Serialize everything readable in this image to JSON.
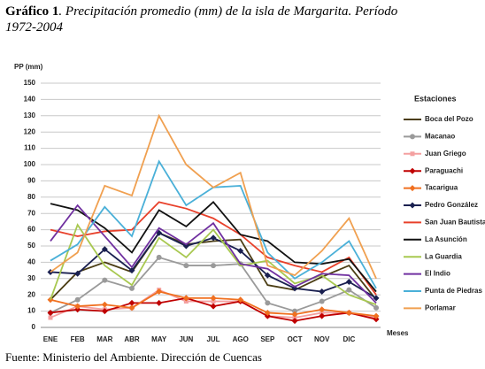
{
  "chart_data": {
    "type": "line",
    "title_label": "Gráfico 1",
    "title": ". Precipitación promedio (mm) de la isla de Margarita. Período 1972-2004",
    "y_label": "PP (mm)",
    "x_label": "Meses",
    "legend_title": "Estaciones",
    "source": "Fuente: Ministerio del Ambiente. Dirección de Cuencas",
    "categories": [
      "ENE",
      "FEB",
      "MAR",
      "ABR",
      "MAY",
      "JUN",
      "JUL",
      "AGO",
      "SEP",
      "OCT",
      "NOV",
      "DIC",
      null
    ],
    "ylim": [
      0,
      150
    ],
    "yticks": [
      0,
      10,
      20,
      30,
      40,
      50,
      60,
      70,
      80,
      90,
      100,
      110,
      120,
      130,
      140,
      150
    ],
    "grid": true,
    "legend": "right",
    "series": [
      {
        "name": "Boca del Pozo",
        "color": "#4b3d14",
        "marker": "none",
        "values": [
          17,
          34,
          40,
          34,
          58,
          51,
          53,
          54,
          26,
          23,
          31,
          38,
          17
        ]
      },
      {
        "name": "Macanao",
        "color": "#9a9a9a",
        "marker": "circle",
        "values": [
          9,
          17,
          29,
          24,
          43,
          38,
          38,
          39,
          15,
          10,
          16,
          23,
          12
        ]
      },
      {
        "name": "Juan Griego",
        "color": "#f4a0a0",
        "marker": "square",
        "values": [
          6,
          13,
          11,
          12,
          23,
          16,
          16,
          16,
          7,
          6,
          9,
          9,
          6
        ]
      },
      {
        "name": "Paraguachi",
        "color": "#c00000",
        "marker": "diamond",
        "values": [
          9,
          11,
          10,
          15,
          15,
          18,
          13,
          16,
          7,
          4,
          7,
          9,
          5
        ]
      },
      {
        "name": "Tacarigua",
        "color": "#f07020",
        "marker": "diamond",
        "values": [
          17,
          13,
          14,
          12,
          22,
          18,
          18,
          17,
          9,
          8,
          11,
          9,
          7
        ]
      },
      {
        "name": "Pedro González",
        "color": "#1a2050",
        "marker": "diamond",
        "values": [
          34,
          33,
          48,
          35,
          58,
          50,
          55,
          47,
          32,
          24,
          22,
          28,
          18
        ]
      },
      {
        "name": "San Juan Bautista",
        "color": "#e8402a",
        "marker": "none",
        "values": [
          60,
          56,
          59,
          60,
          77,
          73,
          67,
          57,
          43,
          38,
          34,
          43,
          20
        ]
      },
      {
        "name": "La Asunción",
        "color": "#111111",
        "marker": "none",
        "values": [
          76,
          72,
          61,
          46,
          72,
          62,
          77,
          57,
          53,
          40,
          39,
          42,
          22
        ]
      },
      {
        "name": "La Guardia",
        "color": "#a8c850",
        "marker": "none",
        "values": [
          17,
          63,
          38,
          26,
          55,
          43,
          60,
          38,
          41,
          27,
          32,
          20,
          14
        ]
      },
      {
        "name": "El Indio",
        "color": "#7030a0",
        "marker": "none",
        "values": [
          53,
          75,
          56,
          37,
          61,
          51,
          64,
          39,
          36,
          25,
          33,
          32,
          15
        ]
      },
      {
        "name": "Punta de Piedras",
        "color": "#4ab0d8",
        "marker": "none",
        "values": [
          41,
          51,
          74,
          56,
          102,
          75,
          86,
          87,
          46,
          30,
          40,
          53,
          24
        ]
      },
      {
        "name": "Porlamar",
        "color": "#f0a050",
        "marker": "none",
        "values": [
          34,
          46,
          87,
          81,
          130,
          100,
          86,
          95,
          38,
          32,
          47,
          67,
          30
        ]
      }
    ]
  }
}
